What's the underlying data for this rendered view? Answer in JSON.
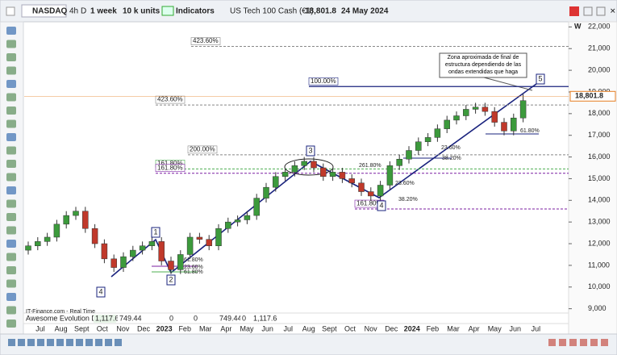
{
  "toolbar": {
    "symbol": "NASDAQ",
    "timeframes": [
      "4h",
      "D"
    ],
    "period": "1 week",
    "units": "10 k units",
    "indicators": "Indicators",
    "instrument": "US Tech 100 Cash (€1)",
    "price": "18,801.8",
    "date": "24 May 2024"
  },
  "chart_data": {
    "type": "candlestick",
    "period_label": "W",
    "up_color": "#3c9a3c",
    "down_color": "#c0392b",
    "candles": [
      [
        11700,
        12100,
        11500,
        11900
      ],
      [
        11900,
        12300,
        11700,
        12100
      ],
      [
        12100,
        12500,
        11900,
        12300
      ],
      [
        12300,
        13100,
        12100,
        12900
      ],
      [
        12900,
        13500,
        12700,
        13300
      ],
      [
        13300,
        13700,
        13100,
        13500
      ],
      [
        13500,
        13700,
        12500,
        12700
      ],
      [
        12700,
        12900,
        11800,
        12000
      ],
      [
        12000,
        12200,
        11100,
        11300
      ],
      [
        11300,
        11500,
        10700,
        10900
      ],
      [
        10900,
        11600,
        10700,
        11400
      ],
      [
        11400,
        11900,
        11200,
        11700
      ],
      [
        11700,
        12100,
        11500,
        11900
      ],
      [
        11900,
        12300,
        11700,
        12100
      ],
      [
        12100,
        12300,
        11000,
        11200
      ],
      [
        11200,
        11400,
        10600,
        10800
      ],
      [
        10800,
        11700,
        10600,
        11500
      ],
      [
        11500,
        12500,
        11300,
        12300
      ],
      [
        12300,
        12500,
        12000,
        12200
      ],
      [
        12200,
        12400,
        11700,
        11900
      ],
      [
        11900,
        12900,
        11700,
        12700
      ],
      [
        12700,
        13200,
        12500,
        13000
      ],
      [
        13000,
        13300,
        12800,
        13100
      ],
      [
        13100,
        13500,
        12900,
        13300
      ],
      [
        13300,
        14300,
        13100,
        14100
      ],
      [
        14100,
        14800,
        13900,
        14600
      ],
      [
        14600,
        15300,
        14400,
        15100
      ],
      [
        15100,
        15500,
        14900,
        15300
      ],
      [
        15300,
        15800,
        15100,
        15600
      ],
      [
        15600,
        16000,
        15400,
        15800
      ],
      [
        15800,
        16000,
        15300,
        15500
      ],
      [
        15500,
        15700,
        14900,
        15100
      ],
      [
        15100,
        15500,
        14900,
        15300
      ],
      [
        15300,
        15500,
        14800,
        15000
      ],
      [
        15000,
        15200,
        14600,
        14800
      ],
      [
        14800,
        15000,
        14200,
        14400
      ],
      [
        14400,
        14600,
        14000,
        14200
      ],
      [
        14200,
        14900,
        14000,
        14700
      ],
      [
        14700,
        15800,
        14500,
        15600
      ],
      [
        15600,
        16100,
        15400,
        15900
      ],
      [
        15900,
        16500,
        15700,
        16300
      ],
      [
        16300,
        16900,
        16100,
        16700
      ],
      [
        16700,
        17100,
        16500,
        16900
      ],
      [
        16900,
        17500,
        16700,
        17300
      ],
      [
        17300,
        17900,
        17100,
        17700
      ],
      [
        17700,
        18100,
        17500,
        17900
      ],
      [
        17900,
        18400,
        17700,
        18200
      ],
      [
        18200,
        18500,
        18000,
        18300
      ],
      [
        18300,
        18500,
        17900,
        18100
      ],
      [
        18100,
        18300,
        17400,
        17600
      ],
      [
        17600,
        17800,
        17000,
        17200
      ],
      [
        17200,
        18000,
        17000,
        17800
      ],
      [
        17800,
        18900,
        17600,
        18600
      ]
    ],
    "ylim": [
      8800,
      22200
    ],
    "yticks": [
      {
        "value": 22000,
        "label": "22,000"
      },
      {
        "value": 21000,
        "label": "21,000"
      },
      {
        "value": 20000,
        "label": "20,000"
      },
      {
        "value": 19000,
        "label": "19,000"
      },
      {
        "value": 18000,
        "label": "18,000"
      },
      {
        "value": 17000,
        "label": "17,000"
      },
      {
        "value": 16000,
        "label": "16,000"
      },
      {
        "value": 15000,
        "label": "15,000"
      },
      {
        "value": 14000,
        "label": "14,000"
      },
      {
        "value": 13000,
        "label": "13,000"
      },
      {
        "value": 12000,
        "label": "12,000"
      },
      {
        "value": 11000,
        "label": "11,000"
      },
      {
        "value": 10000,
        "label": "10,000"
      },
      {
        "value": 9000,
        "label": "9,000"
      }
    ],
    "xticks": [
      "Jul",
      "Aug",
      "Sept",
      "Oct",
      "Nov",
      "Dec",
      "2023",
      "Feb",
      "Mar",
      "Apr",
      "May",
      "Jun",
      "Jul",
      "Aug",
      "Sept",
      "Oct",
      "Nov",
      "Dec",
      "2024",
      "Feb",
      "Mar",
      "Apr",
      "May",
      "Jun",
      "Jul"
    ],
    "last_price": {
      "value": 18801.8,
      "label": "18,801.8"
    },
    "levels": [
      {
        "value": 21100,
        "label": "423.60%",
        "color": "#888888",
        "dashed": true
      },
      {
        "value": 19250,
        "label": "100.00%",
        "color": "#1a237e",
        "dashed": false
      },
      {
        "value": 18400,
        "label": "423.60%",
        "color": "#888888",
        "dashed": true
      },
      {
        "value": 16100,
        "label": "200.00%",
        "color": "#888888",
        "dashed": true
      },
      {
        "value": 15450,
        "label": "161.80%",
        "color": "#4caf50",
        "dashed": true
      },
      {
        "value": 15250,
        "label": "161.80%",
        "color": "#7b1fa2",
        "dashed": true
      },
      {
        "value": 13600,
        "label": "161.80%",
        "color": "#7b1fa2",
        "dashed": true
      }
    ],
    "waves": [
      "4",
      "1",
      "2",
      "3",
      "4",
      "5"
    ],
    "annotation": "Zona aproximada de final de estructura dependiendo de las ondas extendidas que haga",
    "fib_labels": [
      "61.80%",
      "23.60%",
      "38.20%",
      "261.80%",
      "23.60%",
      "38.20%",
      "61.80%",
      "23.60%",
      "61.80%"
    ]
  },
  "indicator": {
    "name": "Awesome Evolution Doc",
    "values": [
      "1,117.6",
      "749.44",
      "0",
      "0",
      "749.44",
      "0",
      "1,117.6"
    ]
  },
  "footer": {
    "source": "IT-Finance.com - Real Time"
  }
}
